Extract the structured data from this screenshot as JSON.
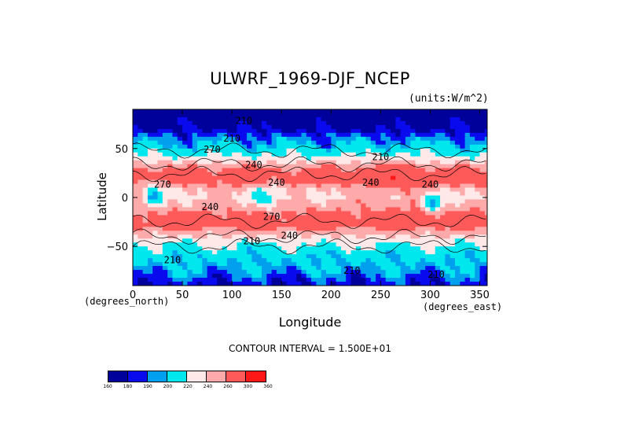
{
  "chart_data": {
    "type": "heatmap",
    "title": "ULWRF_1969-DJF_NCEP",
    "units_note": "(units:W/m^2)",
    "xlabel": "Longitude",
    "ylabel": "Latitude",
    "x_unit_note": "(degrees_east)",
    "y_unit_note": "(degrees_north)",
    "xlim": [
      0,
      357.5
    ],
    "ylim": [
      -90,
      90
    ],
    "x_ticks": [
      0,
      50,
      100,
      150,
      200,
      250,
      300,
      350
    ],
    "y_ticks": [
      -50,
      0,
      50
    ],
    "contour_interval_text": "CONTOUR INTERVAL = 1.500E+01",
    "contour_labels": [
      {
        "text": "210",
        "lon": 112,
        "lat": 75
      },
      {
        "text": "210",
        "lon": 100,
        "lat": 57
      },
      {
        "text": "210",
        "lon": 250,
        "lat": 38
      },
      {
        "text": "240",
        "lon": 122,
        "lat": 30
      },
      {
        "text": "270",
        "lon": 80,
        "lat": 46
      },
      {
        "text": "240",
        "lon": 145,
        "lat": 12
      },
      {
        "text": "240",
        "lon": 240,
        "lat": 12
      },
      {
        "text": "270",
        "lon": 30,
        "lat": 10
      },
      {
        "text": "240",
        "lon": 78,
        "lat": -13
      },
      {
        "text": "270",
        "lon": 140,
        "lat": -23
      },
      {
        "text": "240",
        "lon": 158,
        "lat": -42
      },
      {
        "text": "210",
        "lon": 120,
        "lat": -48
      },
      {
        "text": "210",
        "lon": 40,
        "lat": -67
      },
      {
        "text": "210",
        "lon": 221,
        "lat": -78
      },
      {
        "text": "210",
        "lon": 306,
        "lat": -82
      },
      {
        "text": "240",
        "lon": 300,
        "lat": 10
      }
    ],
    "lat_profile": [
      {
        "lat": 90,
        "value": 160
      },
      {
        "lat": 80,
        "value": 168
      },
      {
        "lat": 70,
        "value": 178
      },
      {
        "lat": 60,
        "value": 192
      },
      {
        "lat": 50,
        "value": 206
      },
      {
        "lat": 40,
        "value": 226
      },
      {
        "lat": 30,
        "value": 262
      },
      {
        "lat": 22,
        "value": 278
      },
      {
        "lat": 15,
        "value": 266
      },
      {
        "lat": 8,
        "value": 246
      },
      {
        "lat": 0,
        "value": 240
      },
      {
        "lat": -10,
        "value": 252
      },
      {
        "lat": -20,
        "value": 272
      },
      {
        "lat": -28,
        "value": 276
      },
      {
        "lat": -35,
        "value": 250
      },
      {
        "lat": -45,
        "value": 226
      },
      {
        "lat": -55,
        "value": 210
      },
      {
        "lat": -65,
        "value": 202
      },
      {
        "lat": -75,
        "value": 196
      },
      {
        "lat": -85,
        "value": 186
      },
      {
        "lat": -90,
        "value": 180
      }
    ],
    "legend": {
      "levels": [
        160,
        180,
        190,
        200,
        220,
        240,
        260,
        300,
        360
      ],
      "colors": [
        "#00009a",
        "#0a0aee",
        "#00a0ee",
        "#00e8ee",
        "#ffe8e8",
        "#ffaaaa",
        "#ff5a5a",
        "#ff1818"
      ]
    }
  }
}
